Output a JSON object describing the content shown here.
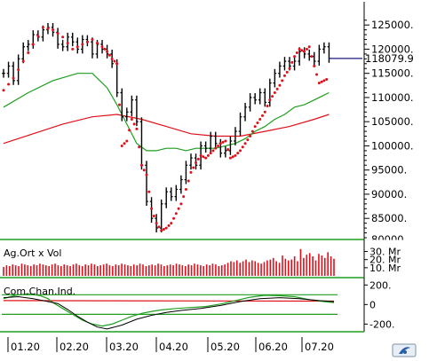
{
  "chart_data": [
    {
      "type": "line",
      "panel": "price",
      "x_ticks": [
        "01.20",
        "02.20",
        "03.20",
        "04.20",
        "05.20",
        "06.20",
        "07.20"
      ],
      "ylim": [
        81000,
        126500
      ],
      "y_ticks": [
        125000,
        120000,
        115000,
        110000,
        105000,
        100000,
        95000,
        90000,
        85000,
        80000
      ],
      "y_tick_labels": [
        "125000.",
        "120000.",
        "115000.",
        "110000.",
        "105000.",
        "100000.",
        "95000.",
        "90000.",
        "85000.",
        "80000."
      ],
      "last_price": 118079.9,
      "last_price_label": "118079.9",
      "colors": {
        "price": "#000000",
        "parabolic_sar": "#e0101a",
        "ma_short": "#1e9e1e",
        "ma_long": "#e0101a",
        "last_line": "#1a1a80"
      },
      "series": [
        {
          "style": "price-bars",
          "x": [
            0,
            2,
            4,
            6,
            8,
            10,
            12,
            14,
            16,
            18,
            20,
            22,
            24,
            26,
            28,
            30,
            32,
            34,
            36,
            38,
            40,
            42,
            44,
            46,
            48,
            50,
            52,
            54,
            56,
            58,
            60,
            62,
            64,
            66,
            68,
            70,
            72,
            74,
            76,
            78,
            80,
            82,
            84,
            86,
            88,
            90,
            92,
            94,
            96,
            98,
            100,
            102,
            104,
            106,
            108,
            110,
            112,
            114,
            116,
            118,
            120,
            122,
            124,
            126,
            128,
            130,
            132
          ],
          "y": [
            115000,
            116500,
            113500,
            118000,
            120500,
            121000,
            123000,
            122500,
            124000,
            124500,
            123500,
            121000,
            120500,
            122500,
            121500,
            120000,
            122000,
            121500,
            119000,
            121000,
            120000,
            119000,
            117000,
            111000,
            106000,
            107000,
            109500,
            105000,
            96000,
            88500,
            85000,
            83000,
            88000,
            90500,
            89500,
            91000,
            93000,
            96000,
            97500,
            96000,
            100000,
            99500,
            102000,
            100500,
            98500,
            99000,
            101000,
            103000,
            106000,
            108000,
            110000,
            109500,
            111000,
            109000,
            113000,
            115000,
            116500,
            117500,
            116500,
            117500,
            119500,
            119000,
            118500,
            117500,
            120000,
            120500,
            118079.9
          ]
        },
        {
          "style": "dotted",
          "x": [
            0,
            4,
            8,
            12,
            16,
            20,
            24,
            28,
            32,
            36,
            40,
            42,
            44,
            46,
            48,
            50,
            52,
            54,
            56,
            58,
            60,
            62,
            64,
            66,
            68,
            70,
            72,
            74,
            76,
            78,
            80,
            82,
            84,
            86,
            88,
            90,
            92,
            94,
            96,
            98,
            100,
            102,
            104,
            106,
            108,
            110,
            112,
            114,
            116,
            118,
            120,
            122,
            124,
            126,
            128,
            130,
            132
          ],
          "y": [
            111500,
            114000,
            117500,
            121000,
            124500,
            124000,
            122500,
            120000,
            121000,
            122000,
            120500,
            119500,
            118000,
            117000,
            100000,
            101000,
            105500,
            103500,
            96000,
            94000,
            87000,
            84000,
            82500,
            83000,
            84000,
            86000,
            88000,
            91000,
            94500,
            96500,
            98000,
            97500,
            98500,
            99500,
            100500,
            101000,
            97500,
            98000,
            99000,
            100500,
            102000,
            104000,
            105500,
            107000,
            109500,
            111000,
            112500,
            114500,
            116000,
            118500,
            120000,
            119500,
            120500,
            116500,
            113000,
            113500,
            114000
          ]
        },
        {
          "style": "solid",
          "x": [
            0,
            10,
            20,
            30,
            36,
            42,
            46,
            50,
            54,
            58,
            62,
            66,
            70,
            74,
            78,
            82,
            86,
            90,
            94,
            98,
            102,
            106,
            110,
            114,
            118,
            122,
            126,
            130,
            132
          ],
          "y": [
            108000,
            111000,
            113500,
            115000,
            115000,
            112000,
            108500,
            104500,
            100500,
            99000,
            99000,
            99500,
            99500,
            99000,
            99500,
            99500,
            99500,
            100000,
            100500,
            101500,
            103000,
            104000,
            105500,
            106500,
            108000,
            108500,
            109500,
            110500,
            111000
          ]
        },
        {
          "style": "solid",
          "x": [
            0,
            12,
            24,
            36,
            46,
            56,
            66,
            76,
            86,
            96,
            106,
            116,
            126,
            132
          ],
          "y": [
            100500,
            102500,
            104500,
            106000,
            106500,
            105500,
            104000,
            102500,
            102000,
            102000,
            103000,
            104000,
            105500,
            106500
          ]
        }
      ]
    },
    {
      "type": "bar",
      "panel": "volume",
      "title": "Ag.Ort x Vol",
      "y_tick_labels": [
        "30. Mr",
        "20. Mr",
        "10. Mr"
      ],
      "ylim": [
        0,
        36
      ],
      "colors": {
        "bars": "#e0101a"
      },
      "values": [
        11,
        13,
        12,
        14,
        13,
        12,
        15,
        14,
        13,
        12,
        14,
        13,
        15,
        14,
        13,
        12,
        14,
        15,
        13,
        12,
        14,
        13,
        12,
        14,
        15,
        13,
        12,
        14,
        13,
        15,
        14,
        12,
        13,
        14,
        15,
        13,
        12,
        14,
        13,
        15,
        14,
        13,
        12,
        14,
        13,
        15,
        14,
        12,
        13,
        14,
        13,
        15,
        14,
        12,
        13,
        14,
        13,
        15,
        14,
        13,
        12,
        14,
        13,
        15,
        14,
        13,
        12,
        14,
        13,
        15,
        14,
        12,
        13,
        14,
        16,
        18,
        17,
        19,
        16,
        18,
        20,
        17,
        19,
        18,
        16,
        15,
        17,
        19,
        20,
        22,
        18,
        16,
        25,
        21,
        19,
        20,
        24,
        18,
        33,
        22,
        26,
        28,
        24,
        19,
        27,
        25,
        22,
        29,
        24,
        21
      ]
    },
    {
      "type": "line",
      "panel": "oscillator",
      "title": "Com.Chan.Ind.",
      "y_tick_labels": [
        "200.",
        "0",
        "-200."
      ],
      "ylim": [
        -260,
        230
      ],
      "colors": {
        "osc_green": "#1e9e1e",
        "osc_black": "#000000",
        "osc_red": "#e0101a",
        "bands": "#1e9e1e"
      },
      "series": [
        {
          "x": [
            0,
            5,
            10,
            15,
            18,
            20,
            24,
            28,
            32,
            36,
            40,
            44,
            48,
            52,
            56,
            60,
            64,
            70,
            76,
            82,
            88,
            94,
            100,
            106,
            112,
            118,
            124,
            130,
            134
          ],
          "y": [
            60,
            95,
            110,
            90,
            60,
            20,
            -40,
            -100,
            -160,
            -200,
            -220,
            -200,
            -160,
            -120,
            -90,
            -70,
            -55,
            -40,
            -30,
            -20,
            5,
            40,
            75,
            95,
            90,
            80,
            50,
            30,
            20
          ]
        },
        {
          "x": [
            0,
            6,
            12,
            18,
            22,
            26,
            30,
            34,
            38,
            42,
            48,
            54,
            60,
            66,
            72,
            80,
            88,
            96,
            104,
            112,
            120,
            128,
            134
          ],
          "y": [
            70,
            80,
            60,
            30,
            10,
            -50,
            -120,
            -180,
            -230,
            -250,
            -210,
            -150,
            -110,
            -80,
            -60,
            -40,
            -10,
            30,
            60,
            70,
            60,
            40,
            30
          ]
        },
        {
          "x": [
            0,
            134
          ],
          "y": [
            40,
            35
          ]
        }
      ]
    }
  ]
}
